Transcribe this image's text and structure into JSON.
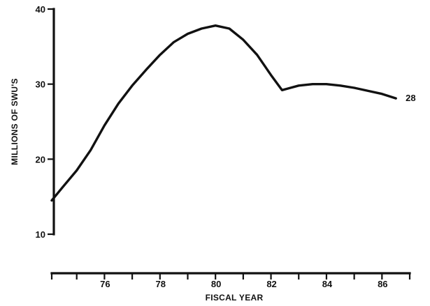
{
  "chart_data": {
    "type": "line",
    "xlabel": "FISCAL YEAR",
    "ylabel": "MILLIONS OF SWU'S",
    "xlim": [
      74.1,
      87.0
    ],
    "ylim": [
      10,
      40
    ],
    "x_ticks": [
      {
        "value": 75,
        "label": ""
      },
      {
        "value": 76,
        "label": "76"
      },
      {
        "value": 77,
        "label": ""
      },
      {
        "value": 78,
        "label": "78"
      },
      {
        "value": 79,
        "label": ""
      },
      {
        "value": 80,
        "label": "80"
      },
      {
        "value": 81,
        "label": ""
      },
      {
        "value": 82,
        "label": "82"
      },
      {
        "value": 83,
        "label": ""
      },
      {
        "value": 84,
        "label": "84"
      },
      {
        "value": 85,
        "label": ""
      },
      {
        "value": 86,
        "label": "86"
      }
    ],
    "y_ticks": [
      {
        "value": 10,
        "label": "10"
      },
      {
        "value": 20,
        "label": "20"
      },
      {
        "value": 30,
        "label": "30"
      },
      {
        "value": 40,
        "label": "40"
      }
    ],
    "grid": false,
    "legend": "none",
    "series": [
      {
        "x": [
          74.1,
          74.5,
          75.0,
          75.5,
          76.0,
          76.5,
          77.0,
          77.5,
          78.0,
          78.5,
          79.0,
          79.5,
          80.0,
          80.5,
          81.0,
          81.5,
          82.0,
          82.4,
          82.6,
          83.0,
          83.5,
          84.0,
          84.5,
          85.0,
          85.5,
          86.0,
          86.5
        ],
        "y": [
          14.5,
          16.3,
          18.5,
          21.2,
          24.5,
          27.4,
          29.8,
          31.9,
          33.9,
          35.6,
          36.7,
          37.4,
          37.8,
          37.4,
          35.9,
          33.9,
          31.2,
          29.2,
          29.4,
          29.8,
          30.0,
          30.0,
          29.8,
          29.5,
          29.1,
          28.7,
          28.1
        ]
      }
    ],
    "annotations": [
      {
        "text": "28",
        "x": 86.5,
        "y": 28.1
      }
    ]
  }
}
